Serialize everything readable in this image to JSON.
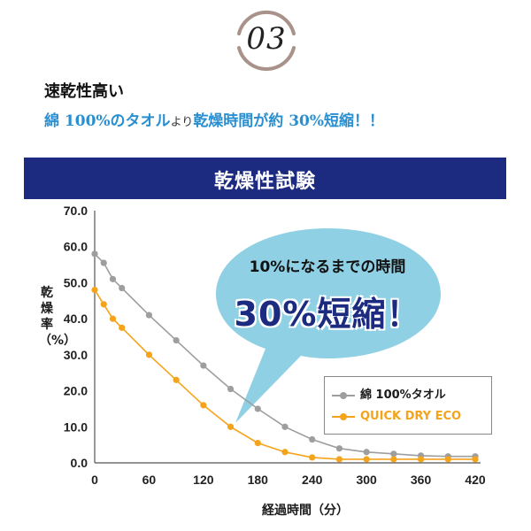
{
  "badge": {
    "number": "03"
  },
  "section": {
    "title": "速乾性高い",
    "subtitle_part1": "綿 100%のタオル",
    "subtitle_part2": "より",
    "subtitle_part3": "乾燥時間が約 30%短縮！！"
  },
  "chart_data": {
    "type": "line",
    "title": "乾燥性試験",
    "xlabel": "経過時間（分）",
    "ylabel": "乾燥率（%）",
    "xlim": [
      0,
      420
    ],
    "ylim": [
      0,
      70
    ],
    "xticks": [
      "0",
      "60",
      "120",
      "180",
      "240",
      "300",
      "360",
      "420"
    ],
    "yticks": [
      "0.0",
      "10.0",
      "20.0",
      "30.0",
      "40.0",
      "50.0",
      "60.0",
      "70.0"
    ],
    "grid": false,
    "legend": "bottom-right",
    "series": [
      {
        "name": "綿 100%タオル",
        "color": "#9e9e9e",
        "x": [
          0,
          10,
          20,
          30,
          60,
          90,
          120,
          150,
          180,
          210,
          240,
          270,
          300,
          330,
          360,
          390,
          420
        ],
        "y": [
          58,
          55.5,
          51,
          48.5,
          41,
          34,
          27,
          20.5,
          15,
          10,
          6.5,
          4,
          3,
          2.5,
          2,
          1.8,
          1.8
        ]
      },
      {
        "name": "QUICK DRY ECO",
        "color": "#f5a31a",
        "x": [
          0,
          10,
          20,
          30,
          60,
          90,
          120,
          150,
          180,
          210,
          240,
          270,
          300,
          330,
          360,
          390,
          420
        ],
        "y": [
          48,
          44,
          40,
          37.5,
          30,
          23,
          16,
          10,
          5.5,
          3,
          1.5,
          1,
          1,
          1,
          1,
          1,
          1
        ]
      }
    ]
  },
  "callout": {
    "line1": "10%になるまでの時間",
    "line2": "30%短縮！"
  }
}
